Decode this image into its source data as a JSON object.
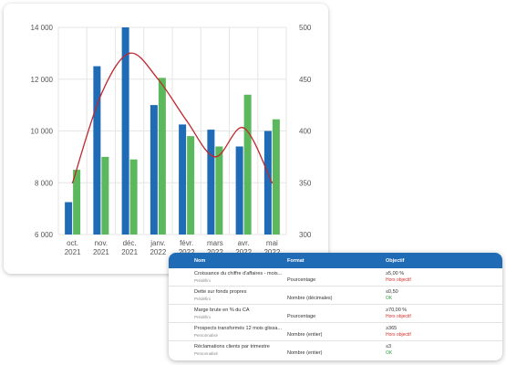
{
  "chart_data": {
    "type": "bar",
    "categories": [
      [
        "oct.",
        "2021"
      ],
      [
        "nov.",
        "2021"
      ],
      [
        "déc.",
        "2021"
      ],
      [
        "janv.",
        "2022"
      ],
      [
        "févr.",
        "2022"
      ],
      [
        "mars",
        "2022"
      ],
      [
        "avr.",
        "2022"
      ],
      [
        "mai",
        "2022"
      ]
    ],
    "series": [
      {
        "type": "bar",
        "axis": "left",
        "color": "#1f6bb6",
        "values": [
          7250,
          12500,
          14000,
          11000,
          10250,
          10050,
          9400,
          10000
        ]
      },
      {
        "type": "bar",
        "axis": "left",
        "color": "#5cb85c",
        "values": [
          8500,
          9000,
          8900,
          12050,
          9800,
          9400,
          11400,
          10450
        ]
      },
      {
        "type": "line",
        "axis": "right",
        "color": "#c0272d",
        "values": [
          350,
          435,
          475,
          450,
          410,
          375,
          403,
          350
        ]
      }
    ],
    "y_left": {
      "ylim": [
        6000,
        14000
      ],
      "ticks": [
        "6 000",
        "8 000",
        "10 000",
        "12 000",
        "14 000"
      ]
    },
    "y_right": {
      "ylim": [
        300,
        500
      ],
      "ticks": [
        "300",
        "350",
        "400",
        "450",
        "500"
      ]
    },
    "grid": true,
    "legend": "none"
  },
  "kpi_table": {
    "headers": {
      "name": "Nom",
      "format": "Format",
      "objective": "Objectif"
    },
    "rows": [
      {
        "name": "Croissance du chiffre d'affaires - mois...",
        "type": "Prédéfini",
        "format": "Pourcentage",
        "target": "≥5,00 %",
        "status": "Hors objectif",
        "ok": false
      },
      {
        "name": "Dette sur fonds propres",
        "type": "Prédéfini",
        "format": "Nombre (décimales)",
        "target": "≤0,50",
        "status": "OK",
        "ok": true
      },
      {
        "name": "Marge brute en % du CA",
        "type": "Prédéfini",
        "format": "Pourcentage",
        "target": "≥70,00 %",
        "status": "Hors objectif",
        "ok": false
      },
      {
        "name": "Prospects transformés 12 mois glissa...",
        "type": "Personnalisé",
        "format": "Nombre (entier)",
        "target": "≥365",
        "status": "Hors objectif",
        "ok": false
      },
      {
        "name": "Réclamations clients par trimestre",
        "type": "Personnalisé",
        "format": "Nombre (entier)",
        "target": "≤3",
        "status": "OK",
        "ok": true
      }
    ]
  }
}
